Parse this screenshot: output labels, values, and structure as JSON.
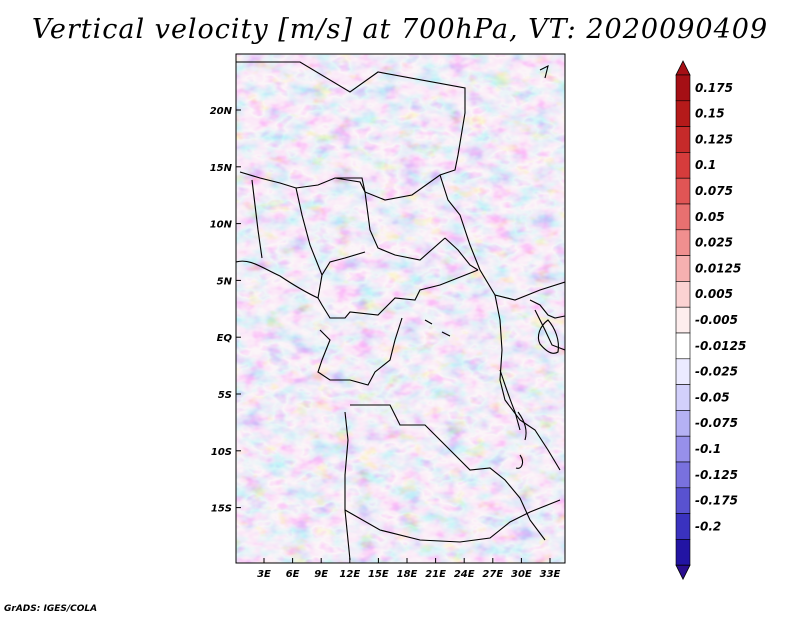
{
  "title": "Vertical velocity [m/s] at 700hPa, VT: 2020090409",
  "credit": "GrADS: IGES/COLA",
  "map": {
    "lat_labels": [
      "20N",
      "15N",
      "10N",
      "5N",
      "EQ",
      "5S",
      "10S",
      "15S"
    ],
    "lon_labels": [
      "3E",
      "6E",
      "9E",
      "12E",
      "15E",
      "18E",
      "21E",
      "24E",
      "27E",
      "30E",
      "33E"
    ]
  },
  "colorbar": {
    "labels": [
      "0.175",
      "0.15",
      "0.125",
      "0.1",
      "0.075",
      "0.05",
      "0.025",
      "0.0125",
      "0.005",
      "-0.005",
      "-0.0125",
      "-0.025",
      "-0.05",
      "-0.075",
      "-0.1",
      "-0.125",
      "-0.175",
      "-0.2"
    ],
    "colors": [
      "#a50f15",
      "#b51a1a",
      "#c62a2a",
      "#d63c3c",
      "#e05555",
      "#e87070",
      "#f08f8f",
      "#f6b0b0",
      "#fbd2d2",
      "#fdeded",
      "#ffffff",
      "#ebeaff",
      "#d2d0fb",
      "#b5b1f4",
      "#9790ea",
      "#7971de",
      "#5952d0",
      "#3a32bf",
      "#2214a3"
    ],
    "top_color": "#a50f15",
    "bottom_color": "#2a0e8f"
  }
}
